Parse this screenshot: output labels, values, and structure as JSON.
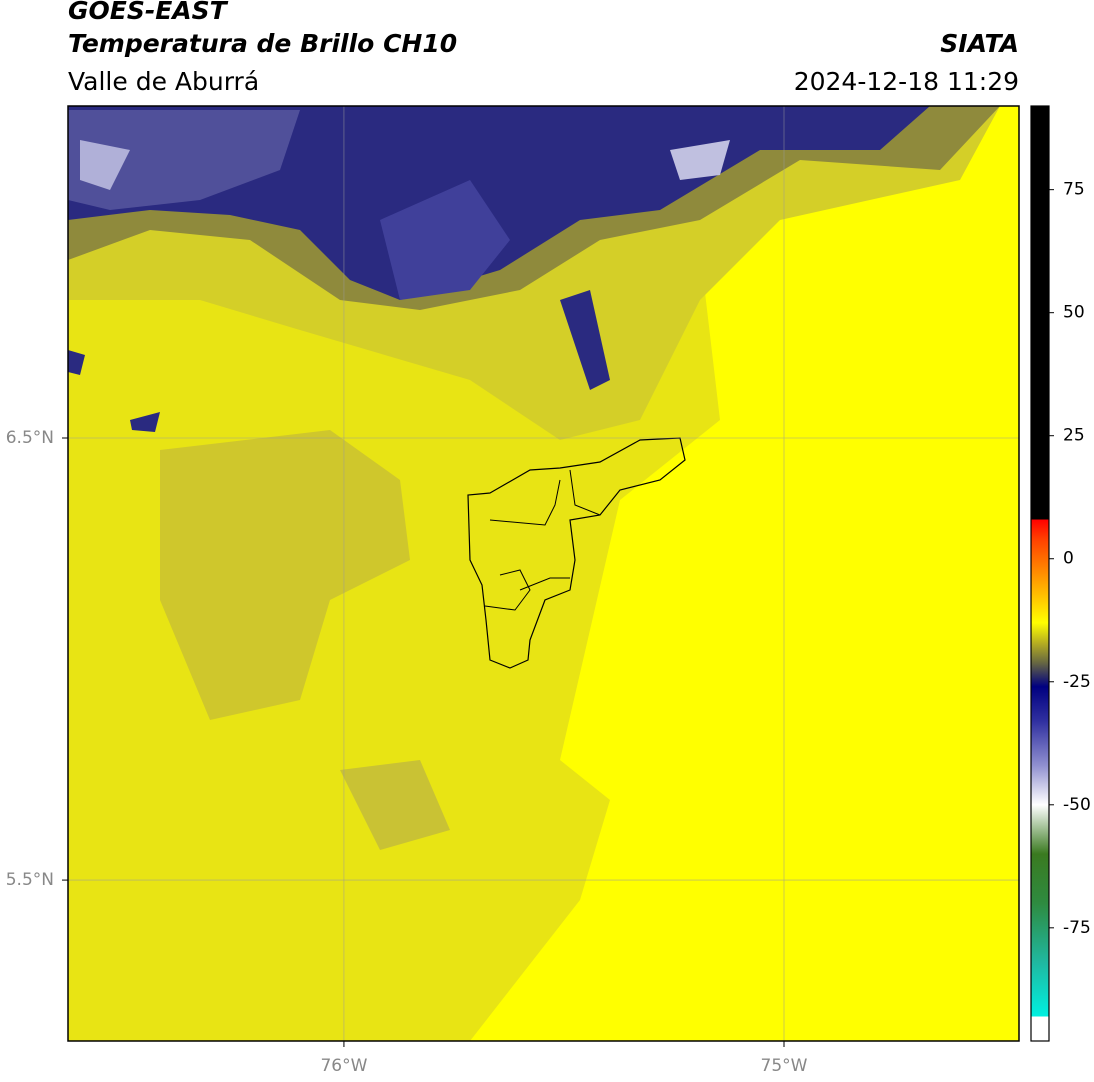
{
  "header": {
    "title": "GOES-EAST",
    "subtitle": "Temperatura de Brillo CH10",
    "region": "Valle de Aburrá",
    "source": "SIATA",
    "timestamp": "2024-12-18 11:29"
  },
  "map": {
    "lonlim": [
      -76.627,
      -74.466
    ],
    "latlim": [
      5.136,
      7.251
    ],
    "lonticks": [
      {
        "value": -76,
        "label": "76°W"
      },
      {
        "value": -75,
        "label": "75°W"
      }
    ],
    "latticks": [
      {
        "value": 6.5,
        "label": "6.5°N"
      },
      {
        "value": 5.5,
        "label": "5.5°N"
      }
    ],
    "grid": true
  },
  "colorbar": {
    "lim": [
      -98,
      92
    ],
    "ticks": [
      -75,
      -50,
      -25,
      0,
      25,
      50,
      75
    ],
    "stops": [
      {
        "value": -98,
        "color": "#ffffff"
      },
      {
        "value": -93,
        "color": "#ffffff"
      },
      {
        "value": -93,
        "color": "#00f0e0"
      },
      {
        "value": -82,
        "color": "#20b8a0"
      },
      {
        "value": -70,
        "color": "#2e8b40"
      },
      {
        "value": -60,
        "color": "#3a7a20"
      },
      {
        "value": -50,
        "color": "#ffffff"
      },
      {
        "value": -42,
        "color": "#9090d0"
      },
      {
        "value": -33,
        "color": "#3030a0"
      },
      {
        "value": -26,
        "color": "#000080"
      },
      {
        "value": -21,
        "color": "#6a6a40"
      },
      {
        "value": -17,
        "color": "#b8b020"
      },
      {
        "value": -13,
        "color": "#ffff00"
      },
      {
        "value": -5,
        "color": "#ffa500"
      },
      {
        "value": 4,
        "color": "#ff4000"
      },
      {
        "value": 8,
        "color": "#ff0000"
      },
      {
        "value": 8,
        "color": "#000000"
      },
      {
        "value": 92,
        "color": "#000000"
      }
    ]
  }
}
